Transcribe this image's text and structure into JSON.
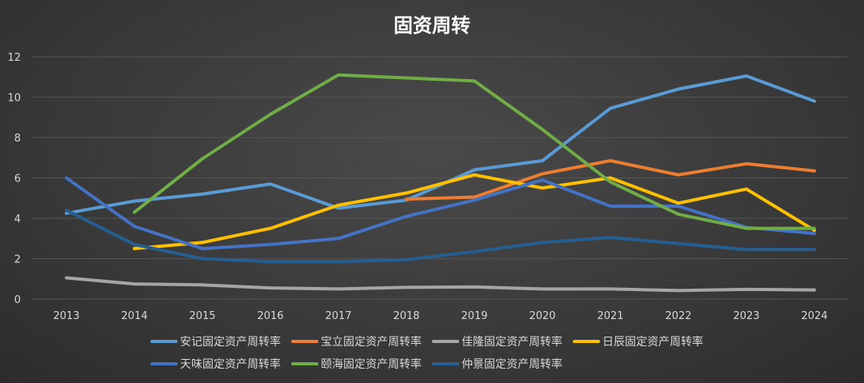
{
  "chart_data": {
    "type": "line",
    "title": "固资周转",
    "xlabel": "",
    "ylabel": "",
    "categories": [
      "2013",
      "2014",
      "2015",
      "2016",
      "2017",
      "2018",
      "2019",
      "2020",
      "2021",
      "2022",
      "2023",
      "2024"
    ],
    "ylim": [
      0,
      12
    ],
    "yticks": [
      0,
      2,
      4,
      6,
      8,
      10,
      12
    ],
    "grid": true,
    "legend_position": "bottom",
    "series": [
      {
        "name": "安记固定资产周转率",
        "color": "#5b9bd5",
        "values": [
          4.25,
          4.85,
          5.2,
          5.7,
          4.5,
          4.9,
          6.4,
          6.85,
          9.45,
          10.4,
          11.05,
          9.8
        ]
      },
      {
        "name": "宝立固定资产周转率",
        "color": "#ed7d31",
        "values": [
          null,
          null,
          null,
          null,
          null,
          4.95,
          5.05,
          6.2,
          6.85,
          6.15,
          6.7,
          6.35
        ]
      },
      {
        "name": "佳隆固定资产周转率",
        "color": "#a5a5a5",
        "values": [
          1.05,
          0.75,
          0.7,
          0.55,
          0.5,
          0.58,
          0.6,
          0.5,
          0.5,
          0.42,
          0.48,
          0.45
        ]
      },
      {
        "name": "日辰固定资产周转率",
        "color": "#ffc000",
        "values": [
          null,
          2.5,
          2.8,
          3.5,
          4.65,
          5.25,
          6.15,
          5.5,
          6.0,
          4.75,
          5.45,
          3.4
        ]
      },
      {
        "name": "天味固定资产周转率",
        "color": "#4472c4",
        "values": [
          6.0,
          3.6,
          2.5,
          2.7,
          3.0,
          4.1,
          4.9,
          5.9,
          4.6,
          4.6,
          3.55,
          3.25
        ]
      },
      {
        "name": "颐海固定资产周转率",
        "color": "#70ad47",
        "values": [
          null,
          4.3,
          6.95,
          9.15,
          11.1,
          10.95,
          10.8,
          8.4,
          5.8,
          4.2,
          3.5,
          3.5
        ]
      },
      {
        "name": "仲景固定资产周转率",
        "color": "#255e91",
        "values": [
          4.4,
          2.7,
          2.0,
          1.85,
          1.85,
          1.95,
          2.35,
          2.8,
          3.05,
          2.75,
          2.45,
          2.45
        ]
      }
    ]
  }
}
